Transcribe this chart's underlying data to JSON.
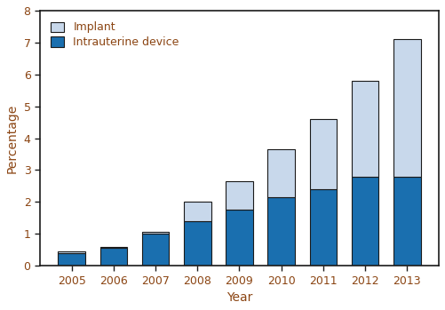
{
  "years": [
    2005,
    2006,
    2007,
    2008,
    2009,
    2010,
    2011,
    2012,
    2013
  ],
  "iud": [
    0.4,
    0.55,
    1.0,
    1.4,
    1.75,
    2.15,
    2.4,
    2.8,
    2.8
  ],
  "implant": [
    0.04,
    0.04,
    0.06,
    0.6,
    0.9,
    1.5,
    2.2,
    3.0,
    4.3
  ],
  "iud_color": "#1a6faf",
  "implant_color": "#c8d8eb",
  "iud_label": "Intrauterine device",
  "implant_label": "Implant",
  "xlabel": "Year",
  "ylabel": "Percentage",
  "ylim": [
    0,
    8
  ],
  "yticks": [
    0,
    1,
    2,
    3,
    4,
    5,
    6,
    7,
    8
  ],
  "bar_width": 0.65,
  "edge_color": "#1a1a1a",
  "background_color": "#ffffff",
  "legend_fontsize": 9,
  "axis_label_fontsize": 10,
  "tick_fontsize": 9,
  "text_color": "#8B4513"
}
